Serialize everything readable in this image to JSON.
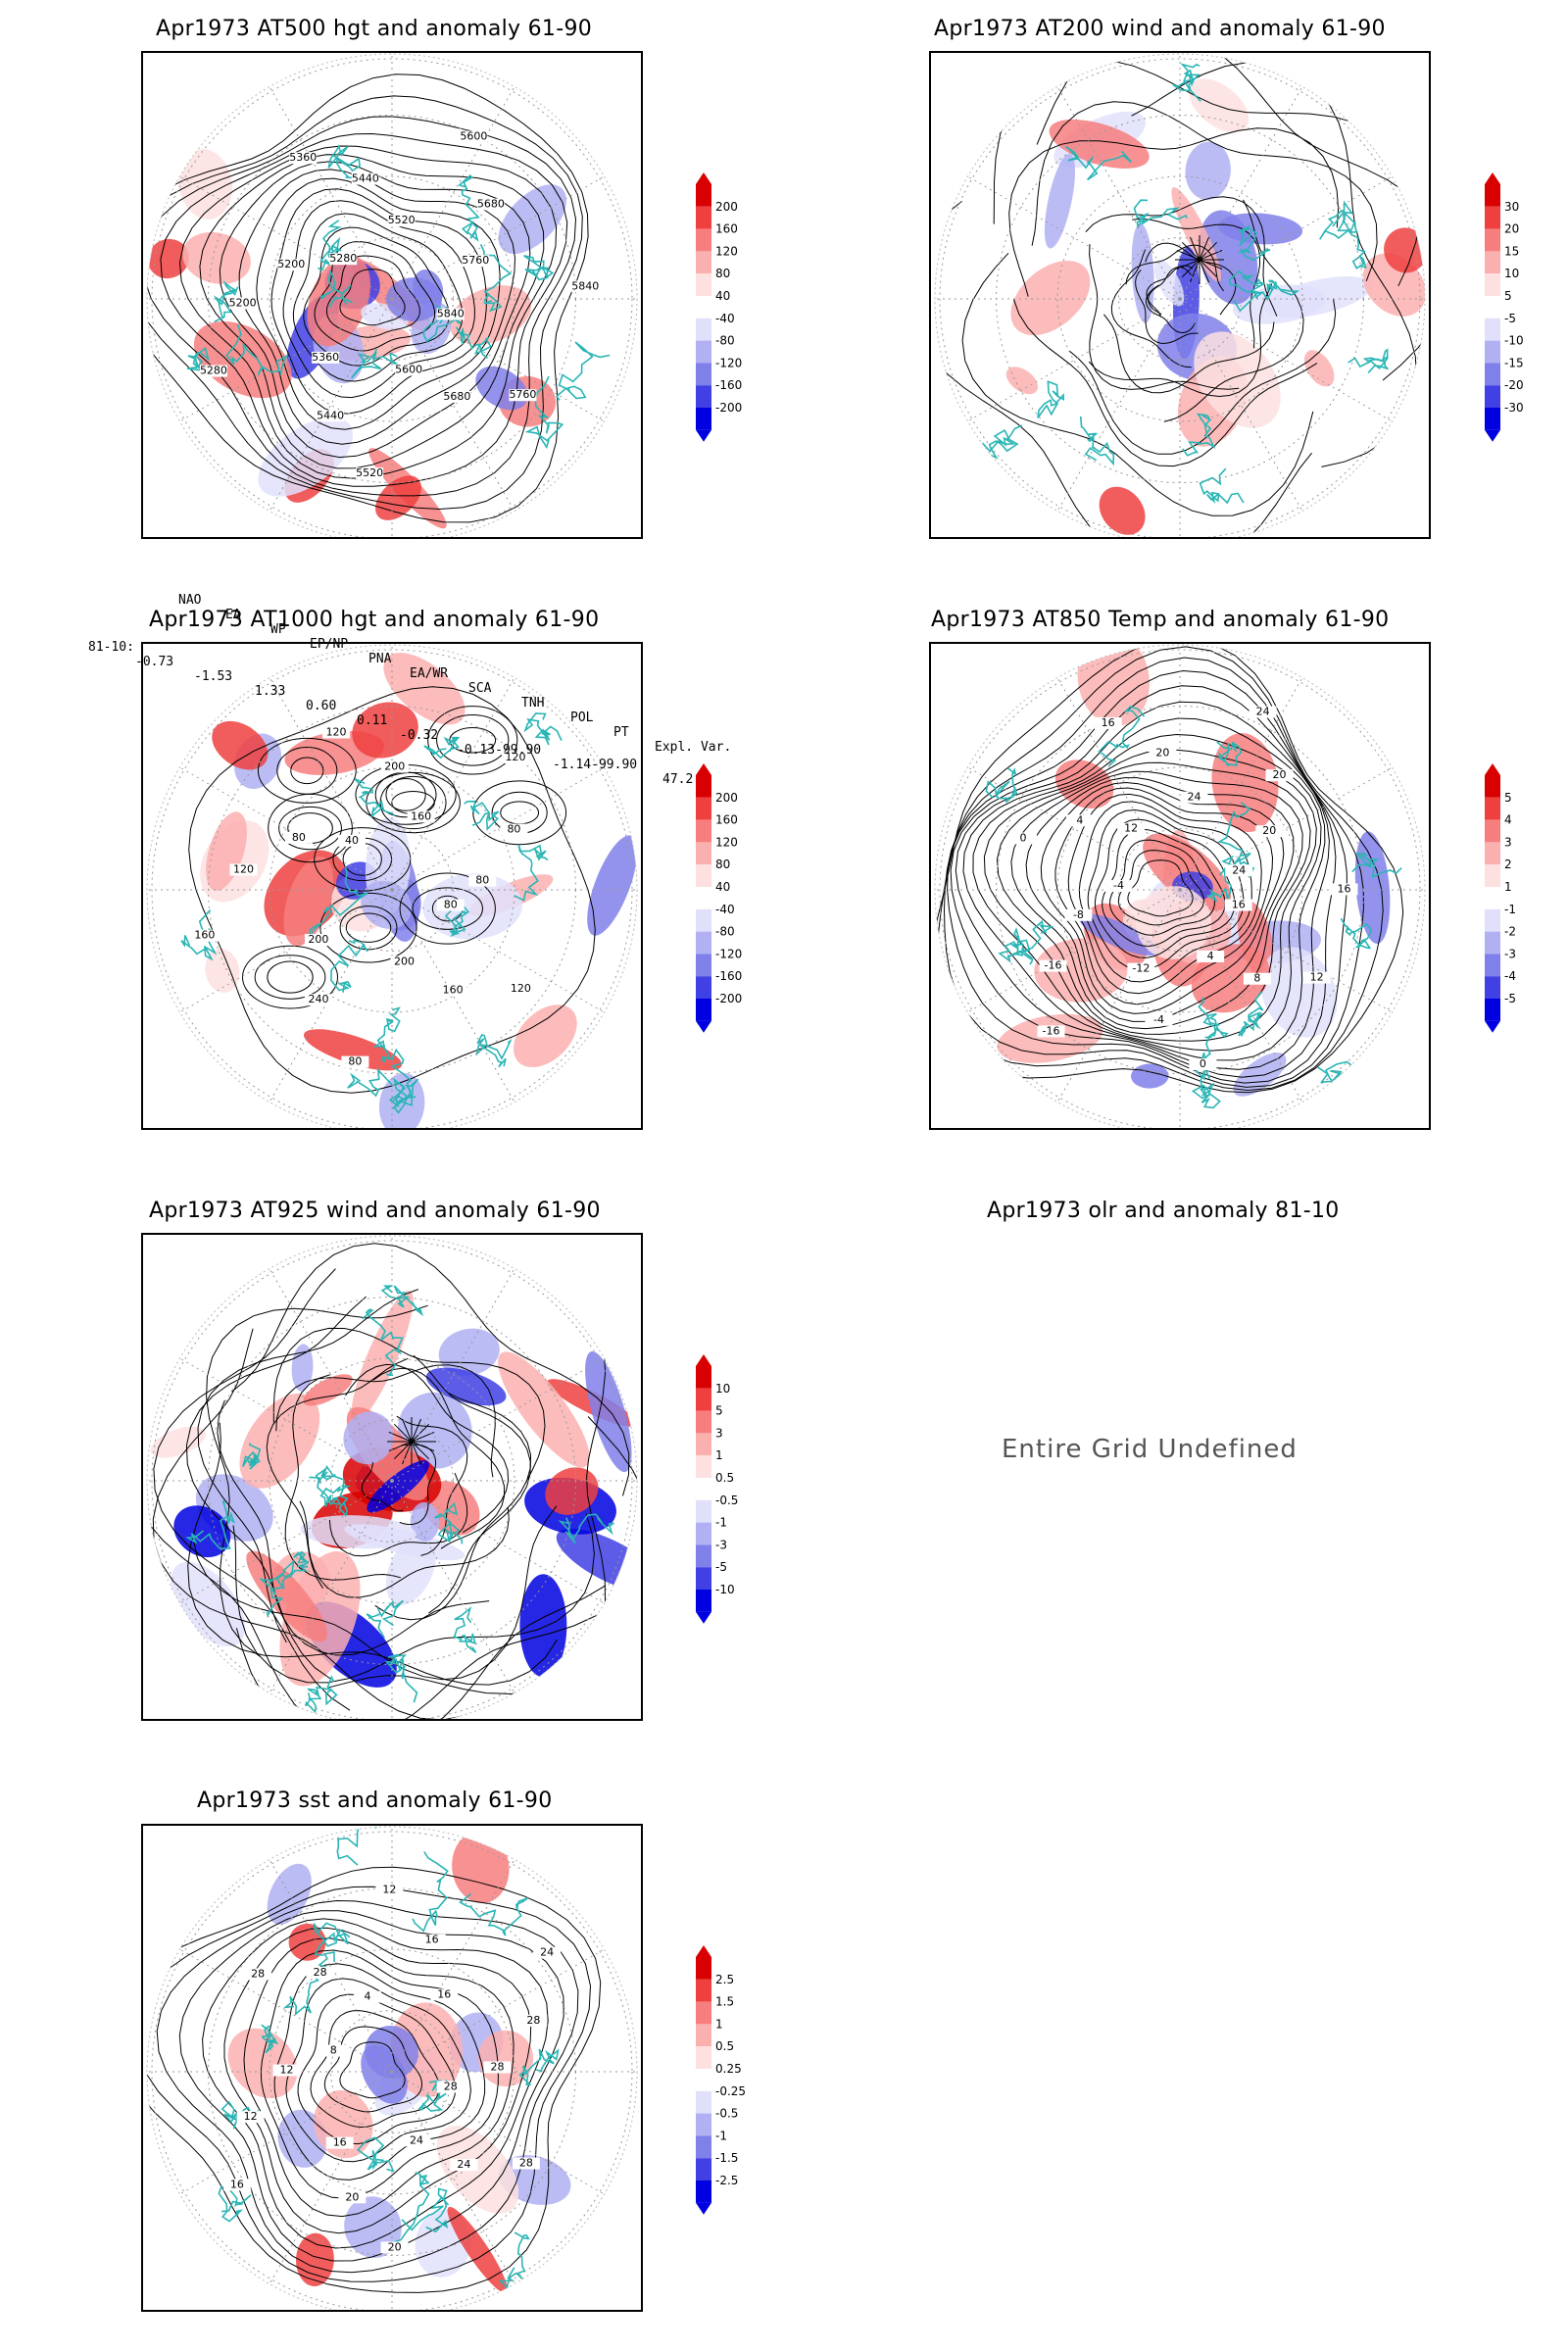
{
  "panels": [
    {
      "title": "Apr1973 AT500 hgt and anomaly 61-90",
      "colorbar": [
        "200",
        "160",
        "120",
        "80",
        "40",
        "-40",
        "-80",
        "-120",
        "-160",
        "-200"
      ],
      "contour_labels": [
        "5840",
        "5760",
        "5680",
        "5600",
        "5520",
        "5440",
        "5360",
        "5280",
        "5200",
        "5200",
        "5280",
        "5360",
        "5440",
        "5520",
        "5600",
        "5680",
        "5760",
        "5840"
      ]
    },
    {
      "title": "Apr1973 AT200 wind and anomaly 61-90",
      "colorbar": [
        "30",
        "20",
        "15",
        "10",
        "5",
        "-5",
        "-10",
        "-15",
        "-20",
        "-30"
      ]
    },
    {
      "title": "Apr1973 AT1000 hgt and anomaly 61-90",
      "colorbar": [
        "200",
        "160",
        "120",
        "80",
        "40",
        "-40",
        "-80",
        "-120",
        "-160",
        "-200"
      ],
      "contour_labels": [
        "80",
        "120",
        "160",
        "200",
        "80",
        "240",
        "200",
        "160",
        "120",
        "80",
        "40",
        "120",
        "200",
        "160",
        "120",
        "80",
        "80"
      ]
    },
    {
      "title": "Apr1973 AT850 Temp and anomaly 61-90",
      "colorbar": [
        "5",
        "4",
        "3",
        "2",
        "1",
        "-1",
        "-2",
        "-3",
        "-4",
        "-5"
      ],
      "contour_labels": [
        "16",
        "12",
        "8",
        "4",
        "0",
        "-4",
        "-12",
        "-16",
        "-16",
        "-8",
        "-4",
        "0",
        "4",
        "12",
        "16",
        "20",
        "24",
        "24",
        "20",
        "20",
        "24",
        "16"
      ]
    },
    {
      "title": "Apr1973 AT925 wind and anomaly 61-90",
      "colorbar": [
        "10",
        "5",
        "3",
        "1",
        "0.5",
        "-0.5",
        "-1",
        "-3",
        "-5",
        "-10"
      ]
    },
    {
      "title": "Apr1973 olr and anomaly 81-10",
      "undefined_text": "Entire Grid Undefined"
    },
    {
      "title": "Apr1973 sst and anomaly 61-90",
      "colorbar": [
        "2.5",
        "1.5",
        "1",
        "0.5",
        "0.25",
        "-0.25",
        "-0.5",
        "-1",
        "-1.5",
        "-2.5"
      ],
      "contour_labels": [
        "28",
        "28",
        "24",
        "24",
        "20",
        "20",
        "16",
        "16",
        "12",
        "12",
        "8",
        "28",
        "28",
        "4",
        "12",
        "16",
        "16",
        "24",
        "28",
        "28"
      ]
    }
  ],
  "indices": {
    "headers": [
      "NAO",
      "EA",
      "WP",
      "EP/NP",
      "PNA",
      "EA/WR",
      "SCA",
      "TNH",
      "POL",
      "PT",
      "Expl. Var."
    ],
    "row_label": "81-10:",
    "values": [
      "-0.73",
      "-1.53",
      "1.33",
      "0.60",
      "0.11",
      "-0.32",
      "-0.13-99.90",
      "-1.14-99.90",
      "47.2"
    ]
  },
  "colors": {
    "coast": "#2ab5b5",
    "red_ramp": [
      "#d80000",
      "#ef3f3f",
      "#f77e7e",
      "#fbb0b0",
      "#fde0e0"
    ],
    "blue_ramp": [
      "#e0e0fb",
      "#b0b0f3",
      "#8080ea",
      "#4040e4",
      "#0000e0"
    ]
  }
}
